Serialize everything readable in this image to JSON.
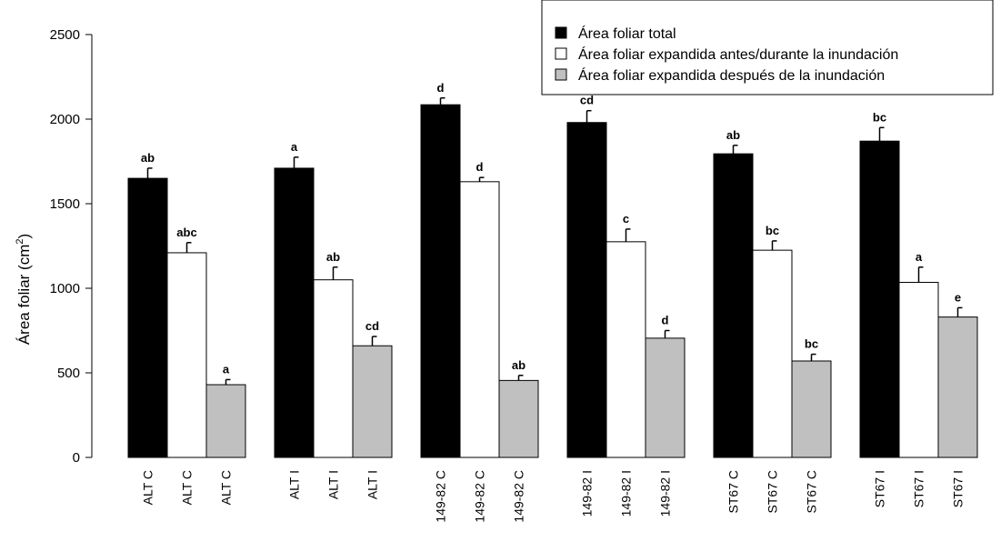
{
  "chart_data": {
    "type": "bar",
    "ylabel": "Área foliar",
    "ylabel_unit_base": "cm",
    "ylabel_unit_exp": "2",
    "ylim": [
      0,
      2500
    ],
    "yticks": [
      0,
      500,
      1000,
      1500,
      2000,
      2500
    ],
    "grid": false,
    "legend_position": "top-right",
    "colors": {
      "total": "#000000",
      "antes": "#ffffff",
      "despues": "#c0c0c0"
    },
    "series": [
      {
        "key": "total",
        "name": "Área foliar total"
      },
      {
        "key": "antes",
        "name": "Área foliar expandida antes/durante la inundación"
      },
      {
        "key": "despues",
        "name": "Área foliar expandida después de la inundación"
      }
    ],
    "groups": [
      {
        "bars": [
          {
            "label": "ALT C",
            "value": 1650,
            "error": 60,
            "sig": "ab"
          },
          {
            "label": "ALT C",
            "value": 1210,
            "error": 60,
            "sig": "abc"
          },
          {
            "label": "ALT C",
            "value": 430,
            "error": 30,
            "sig": "a"
          }
        ]
      },
      {
        "bars": [
          {
            "label": "ALT I",
            "value": 1710,
            "error": 65,
            "sig": "a"
          },
          {
            "label": "ALT I",
            "value": 1050,
            "error": 75,
            "sig": "ab"
          },
          {
            "label": "ALT I",
            "value": 660,
            "error": 55,
            "sig": "cd"
          }
        ]
      },
      {
        "bars": [
          {
            "label": "149-82 C",
            "value": 2085,
            "error": 40,
            "sig": "d"
          },
          {
            "label": "149-82 C",
            "value": 1630,
            "error": 25,
            "sig": "d"
          },
          {
            "label": "149-82 C",
            "value": 455,
            "error": 30,
            "sig": "ab"
          }
        ]
      },
      {
        "bars": [
          {
            "label": "149-82 I",
            "value": 1980,
            "error": 70,
            "sig": "cd"
          },
          {
            "label": "149-82 I",
            "value": 1275,
            "error": 75,
            "sig": "c"
          },
          {
            "label": "149-82 I",
            "value": 705,
            "error": 45,
            "sig": "d"
          }
        ]
      },
      {
        "bars": [
          {
            "label": "ST67 C",
            "value": 1795,
            "error": 50,
            "sig": "ab"
          },
          {
            "label": "ST67 C",
            "value": 1225,
            "error": 55,
            "sig": "bc"
          },
          {
            "label": "ST67 C",
            "value": 570,
            "error": 40,
            "sig": "bc"
          }
        ]
      },
      {
        "bars": [
          {
            "label": "ST67 I",
            "value": 1870,
            "error": 80,
            "sig": "bc"
          },
          {
            "label": "ST67 I",
            "value": 1035,
            "error": 90,
            "sig": "a"
          },
          {
            "label": "ST67 I",
            "value": 830,
            "error": 55,
            "sig": "e"
          }
        ]
      }
    ]
  }
}
